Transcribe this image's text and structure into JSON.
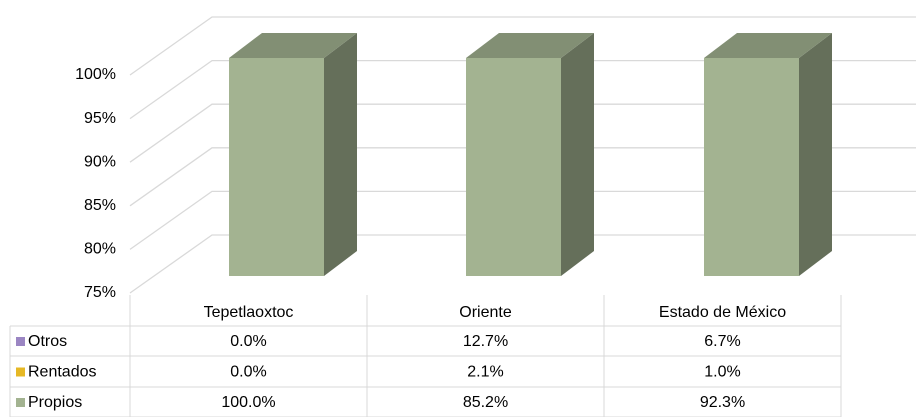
{
  "chart_data": {
    "type": "bar3d_stacked",
    "categories": [
      "Tepetlaoxtoc",
      "Oriente",
      "Estado de México"
    ],
    "series": [
      {
        "name": "Otros",
        "color": "#9b86c3",
        "values": [
          0,
          12.7,
          6.7
        ],
        "value_labels": [
          "0.0%",
          "12.7%",
          "6.7%"
        ]
      },
      {
        "name": "Rentados",
        "color": "#e6b825",
        "values": [
          0,
          2.1,
          1.0
        ],
        "value_labels": [
          "0.0%",
          "2.1%",
          "1.0%"
        ]
      },
      {
        "name": "Propios",
        "color": "#a3b391",
        "values": [
          100,
          85.2,
          92.3
        ],
        "value_labels": [
          "100.0%",
          "85.2%",
          "92.3%"
        ]
      }
    ],
    "ylim": [
      75,
      100
    ],
    "yticks": [
      {
        "value": 75,
        "label": "75%"
      },
      {
        "value": 80,
        "label": "80%"
      },
      {
        "value": 85,
        "label": "85%"
      },
      {
        "value": 90,
        "label": "90%"
      },
      {
        "value": 95,
        "label": "95%"
      },
      {
        "value": 100,
        "label": "100%"
      }
    ],
    "grid": true
  }
}
